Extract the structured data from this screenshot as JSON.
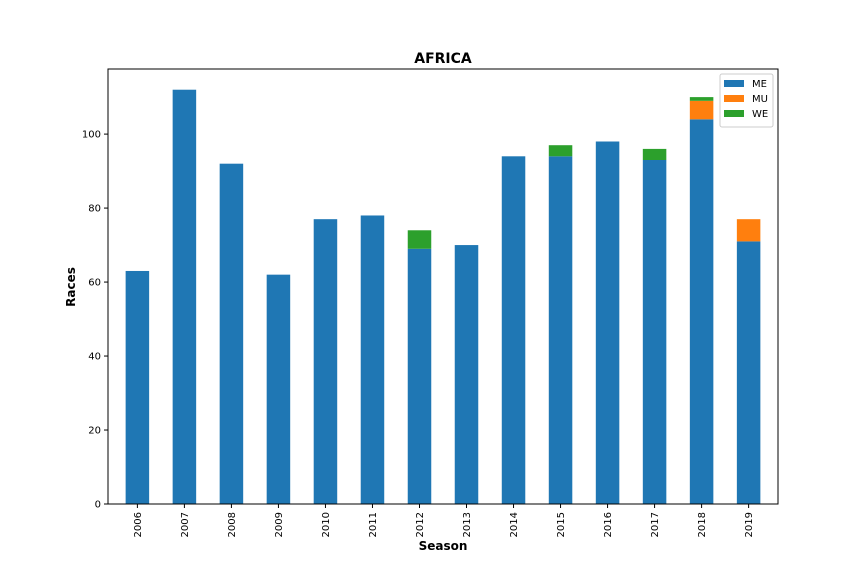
{
  "chart_data": {
    "type": "bar",
    "stacked": true,
    "title": "AFRICA",
    "xlabel": "Season",
    "ylabel": "Races",
    "categories": [
      "2006",
      "2007",
      "2008",
      "2009",
      "2010",
      "2011",
      "2012",
      "2013",
      "2014",
      "2015",
      "2016",
      "2017",
      "2018",
      "2019"
    ],
    "series": [
      {
        "name": "ME",
        "color": "#1f77b4",
        "values": [
          63,
          112,
          92,
          62,
          77,
          78,
          69,
          70,
          94,
          94,
          98,
          93,
          104,
          71
        ]
      },
      {
        "name": "MU",
        "color": "#ff7f0e",
        "values": [
          0,
          0,
          0,
          0,
          0,
          0,
          0,
          0,
          0,
          0,
          0,
          0,
          5,
          6
        ]
      },
      {
        "name": "WE",
        "color": "#2ca02c",
        "values": [
          0,
          0,
          0,
          0,
          0,
          0,
          5,
          0,
          0,
          3,
          0,
          3,
          1,
          0
        ]
      }
    ],
    "ylim": [
      0,
      117.6
    ],
    "yticks": [
      0,
      20,
      40,
      60,
      80,
      100
    ],
    "grid": false,
    "legend_position": "top-right"
  }
}
